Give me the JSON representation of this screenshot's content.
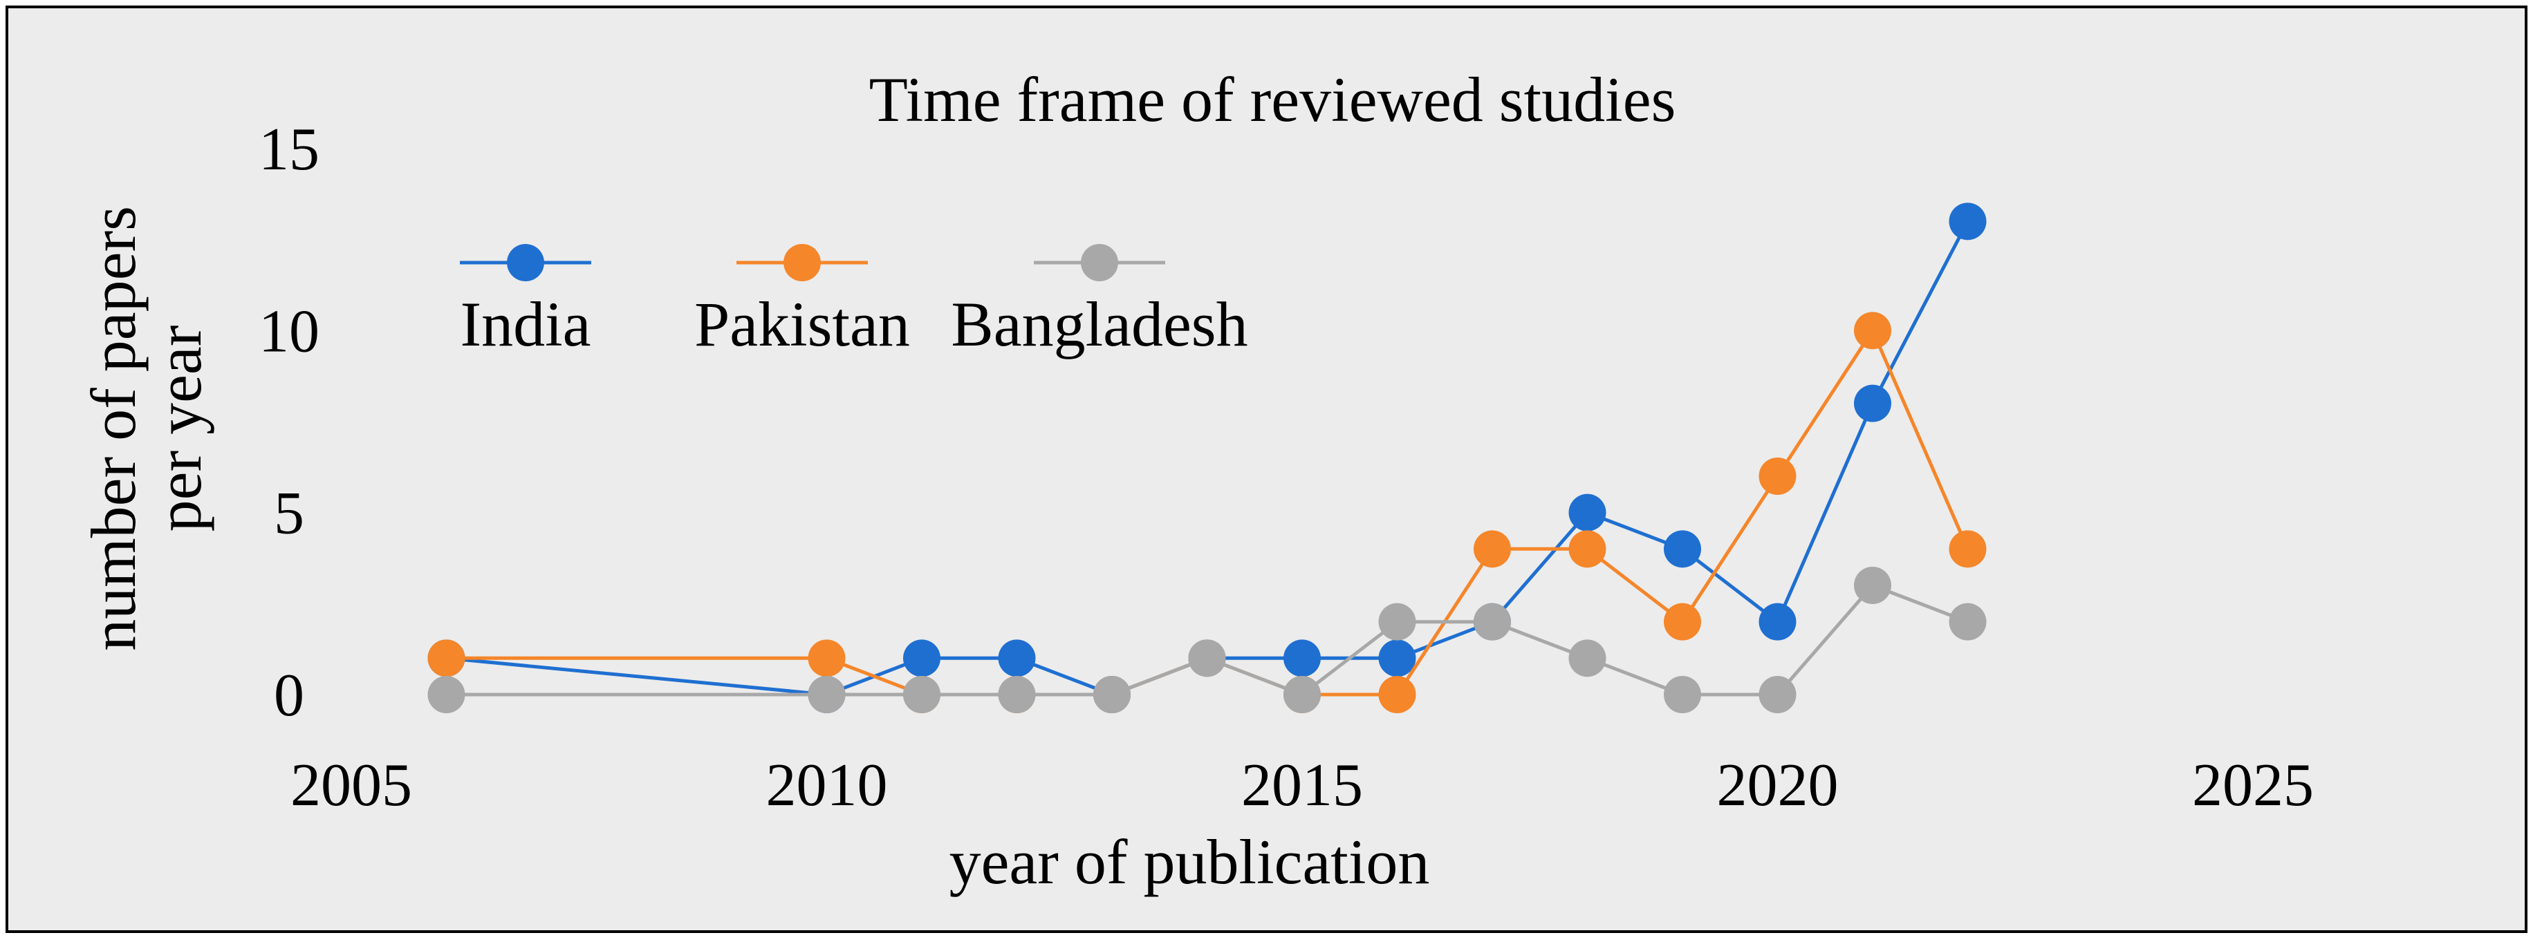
{
  "chart_data": {
    "type": "line",
    "title": "Time frame of reviewed studies",
    "xlabel": "year of publication",
    "ylabel": [
      "number of papers",
      "per year"
    ],
    "xlim": [
      2005,
      2025
    ],
    "ylim": [
      0,
      15
    ],
    "xticks": [
      "2005",
      "2010",
      "2015",
      "2020",
      "2025"
    ],
    "yticks": [
      "0",
      "5",
      "10",
      "15"
    ],
    "grid": false,
    "legend": "top-left",
    "background": "#ececec",
    "series": [
      {
        "name": "India",
        "color": "#1f6fd1",
        "points": [
          [
            2006,
            1
          ],
          [
            2010,
            0
          ],
          [
            2011,
            1
          ],
          [
            2012,
            1
          ],
          [
            2013,
            0
          ],
          [
            2014,
            1
          ],
          [
            2015,
            1
          ],
          [
            2016,
            1
          ],
          [
            2017,
            2
          ],
          [
            2018,
            5
          ],
          [
            2019,
            4
          ],
          [
            2020,
            2
          ],
          [
            2021,
            8
          ],
          [
            2022,
            13
          ]
        ]
      },
      {
        "name": "Pakistan",
        "color": "#f5862a",
        "points": [
          [
            2006,
            1
          ],
          [
            2010,
            1
          ],
          [
            2011,
            0
          ],
          [
            2012,
            0
          ],
          [
            2013,
            0
          ],
          [
            2014,
            1
          ],
          [
            2015,
            0
          ],
          [
            2016,
            0
          ],
          [
            2017,
            4
          ],
          [
            2018,
            4
          ],
          [
            2019,
            2
          ],
          [
            2020,
            6
          ],
          [
            2021,
            10
          ],
          [
            2022,
            4
          ]
        ]
      },
      {
        "name": "Bangladesh",
        "color": "#a8a8a8",
        "points": [
          [
            2006,
            0
          ],
          [
            2010,
            0
          ],
          [
            2011,
            0
          ],
          [
            2012,
            0
          ],
          [
            2013,
            0
          ],
          [
            2014,
            1
          ],
          [
            2015,
            0
          ],
          [
            2016,
            2
          ],
          [
            2017,
            2
          ],
          [
            2018,
            1
          ],
          [
            2019,
            0
          ],
          [
            2020,
            0
          ],
          [
            2021,
            3
          ],
          [
            2022,
            2
          ]
        ]
      }
    ]
  }
}
